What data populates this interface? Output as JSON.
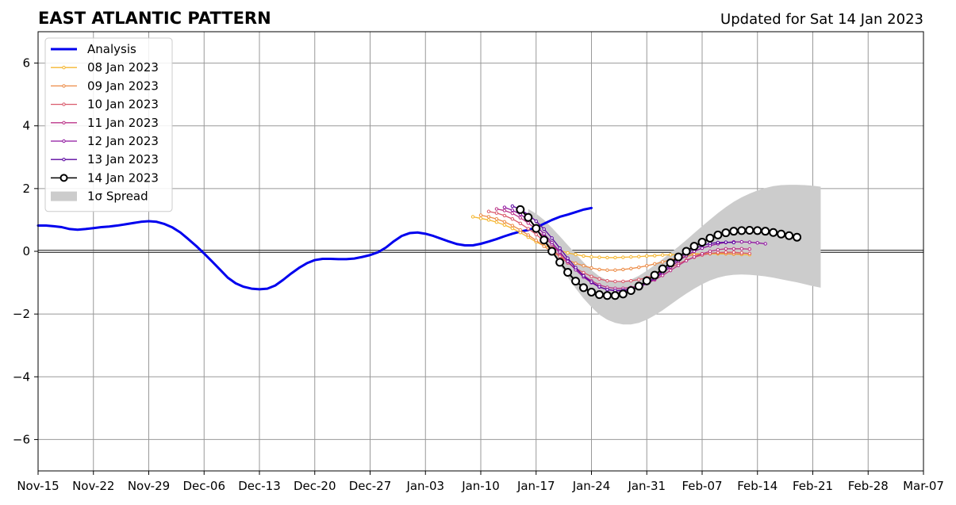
{
  "header": {
    "title": "EAST ATLANTIC PATTERN",
    "updated": "Updated for Sat 14 Jan 2023"
  },
  "chart_data": {
    "type": "line",
    "title": "EAST ATLANTIC PATTERN",
    "subtitle": "Updated for Sat 14 Jan 2023",
    "xlabel": "",
    "ylabel": "",
    "x_axis": {
      "type": "date",
      "range": [
        "2022-11-15",
        "2023-03-07"
      ],
      "ticks": [
        {
          "date": "2022-11-15",
          "label": "Nov-15"
        },
        {
          "date": "2022-11-22",
          "label": "Nov-22"
        },
        {
          "date": "2022-11-29",
          "label": "Nov-29"
        },
        {
          "date": "2022-12-06",
          "label": "Dec-06"
        },
        {
          "date": "2022-12-13",
          "label": "Dec-13"
        },
        {
          "date": "2022-12-20",
          "label": "Dec-20"
        },
        {
          "date": "2022-12-27",
          "label": "Dec-27"
        },
        {
          "date": "2023-01-03",
          "label": "Jan-03"
        },
        {
          "date": "2023-01-10",
          "label": "Jan-10"
        },
        {
          "date": "2023-01-17",
          "label": "Jan-17"
        },
        {
          "date": "2023-01-24",
          "label": "Jan-24"
        },
        {
          "date": "2023-01-31",
          "label": "Jan-31"
        },
        {
          "date": "2023-02-07",
          "label": "Feb-07"
        },
        {
          "date": "2023-02-14",
          "label": "Feb-14"
        },
        {
          "date": "2023-02-21",
          "label": "Feb-21"
        },
        {
          "date": "2023-02-28",
          "label": "Feb-28"
        },
        {
          "date": "2023-03-07",
          "label": "Mar-07"
        }
      ]
    },
    "y_axis": {
      "range": [
        -7,
        7
      ],
      "ticks": [
        {
          "value": -6,
          "label": "−6"
        },
        {
          "value": -4,
          "label": "−4"
        },
        {
          "value": -2,
          "label": "−2"
        },
        {
          "value": 0,
          "label": "0"
        },
        {
          "value": 2,
          "label": "2"
        },
        {
          "value": 4,
          "label": "4"
        },
        {
          "value": 6,
          "label": "6"
        }
      ]
    },
    "grid": true,
    "zero_line": true,
    "legend": {
      "position": "top-left",
      "entries": [
        {
          "label": "Analysis",
          "color": "#0000ee",
          "style": "line-thick"
        },
        {
          "label": "08 Jan 2023",
          "color": "#f5b731",
          "style": "line-dot"
        },
        {
          "label": "09 Jan 2023",
          "color": "#ec8b46",
          "style": "line-dot"
        },
        {
          "label": "10 Jan 2023",
          "color": "#d9586a",
          "style": "line-dot"
        },
        {
          "label": "11 Jan 2023",
          "color": "#bb3589",
          "style": "line-dot"
        },
        {
          "label": "12 Jan 2023",
          "color": "#8e149f",
          "style": "line-dot"
        },
        {
          "label": "13 Jan 2023",
          "color": "#5b06a1",
          "style": "line-dot"
        },
        {
          "label": "14 Jan 2023",
          "color": "#000000",
          "style": "line-circle"
        },
        {
          "label": "1σ Spread",
          "color": "#cccccc",
          "style": "patch"
        }
      ]
    },
    "analysis": {
      "name": "Analysis",
      "color": "#0000ee",
      "start": "2022-11-15",
      "values": [
        0.82,
        0.82,
        0.8,
        0.77,
        0.71,
        0.69,
        0.71,
        0.74,
        0.77,
        0.79,
        0.82,
        0.86,
        0.9,
        0.94,
        0.96,
        0.94,
        0.87,
        0.76,
        0.6,
        0.39,
        0.17,
        -0.07,
        -0.32,
        -0.58,
        -0.84,
        -1.02,
        -1.13,
        -1.19,
        -1.21,
        -1.19,
        -1.09,
        -0.91,
        -0.71,
        -0.53,
        -0.38,
        -0.28,
        -0.24,
        -0.24,
        -0.25,
        -0.25,
        -0.23,
        -0.18,
        -0.12,
        -0.03,
        0.12,
        0.32,
        0.49,
        0.58,
        0.6,
        0.56,
        0.49,
        0.4,
        0.31,
        0.23,
        0.19,
        0.19,
        0.24,
        0.31,
        0.39,
        0.48,
        0.56,
        0.63,
        0.68,
        0.76,
        0.88,
        1.0,
        1.1,
        1.17,
        1.25,
        1.33,
        1.38
      ]
    },
    "forecasts": [
      {
        "name": "08 Jan 2023",
        "color": "#f5b731",
        "start": "2023-01-09",
        "values": [
          1.1,
          1.05,
          1.0,
          0.93,
          0.84,
          0.73,
          0.6,
          0.45,
          0.3,
          0.18,
          0.1,
          0.03,
          -0.05,
          -0.1,
          -0.15,
          -0.18,
          -0.19,
          -0.2,
          -0.2,
          -0.19,
          -0.18,
          -0.17,
          -0.15,
          -0.14,
          -0.12,
          -0.11,
          -0.1,
          -0.09,
          -0.08,
          -0.08,
          -0.08,
          -0.08,
          -0.08,
          -0.09,
          -0.1,
          -0.11
        ]
      },
      {
        "name": "09 Jan 2023",
        "color": "#ec8b46",
        "start": "2023-01-10",
        "values": [
          1.15,
          1.1,
          1.03,
          0.94,
          0.82,
          0.68,
          0.52,
          0.35,
          0.16,
          -0.02,
          -0.16,
          -0.28,
          -0.38,
          -0.46,
          -0.53,
          -0.58,
          -0.6,
          -0.6,
          -0.58,
          -0.55,
          -0.51,
          -0.46,
          -0.4,
          -0.34,
          -0.27,
          -0.21,
          -0.16,
          -0.11,
          -0.08,
          -0.06,
          -0.06,
          -0.07,
          -0.08,
          -0.09
        ]
      },
      {
        "name": "10 Jan 2023",
        "color": "#d9586a",
        "start": "2023-01-11",
        "values": [
          1.27,
          1.22,
          1.14,
          1.03,
          0.89,
          0.72,
          0.54,
          0.33,
          0.09,
          -0.16,
          -0.37,
          -0.54,
          -0.68,
          -0.8,
          -0.88,
          -0.94,
          -0.96,
          -0.96,
          -0.94,
          -0.9,
          -0.84,
          -0.75,
          -0.64,
          -0.52,
          -0.4,
          -0.28,
          -0.19,
          -0.12,
          -0.07,
          -0.04,
          -0.03,
          -0.03,
          -0.05,
          -0.07
        ]
      },
      {
        "name": "11 Jan 2023",
        "color": "#bb3589",
        "start": "2023-01-12",
        "values": [
          1.35,
          1.3,
          1.21,
          1.07,
          0.9,
          0.7,
          0.47,
          0.22,
          -0.06,
          -0.33,
          -0.56,
          -0.77,
          -0.94,
          -1.07,
          -1.15,
          -1.18,
          -1.18,
          -1.15,
          -1.1,
          -1.02,
          -0.91,
          -0.77,
          -0.61,
          -0.45,
          -0.3,
          -0.18,
          -0.08,
          0.0,
          0.05,
          0.08,
          0.08,
          0.08,
          0.07
        ]
      },
      {
        "name": "12 Jan 2023",
        "color": "#8e149f",
        "start": "2023-01-13",
        "values": [
          1.4,
          1.31,
          1.18,
          1.01,
          0.8,
          0.56,
          0.28,
          -0.02,
          -0.32,
          -0.59,
          -0.82,
          -1.0,
          -1.14,
          -1.22,
          -1.26,
          -1.26,
          -1.22,
          -1.14,
          -1.03,
          -0.88,
          -0.69,
          -0.5,
          -0.31,
          -0.14,
          0.0,
          0.1,
          0.18,
          0.24,
          0.28,
          0.3,
          0.3,
          0.29,
          0.27,
          0.24
        ]
      },
      {
        "name": "13 Jan 2023",
        "color": "#5b06a1",
        "start": "2023-01-14",
        "values": [
          1.44,
          1.34,
          1.17,
          0.96,
          0.71,
          0.42,
          0.1,
          -0.22,
          -0.52,
          -0.78,
          -0.98,
          -1.13,
          -1.22,
          -1.25,
          -1.24,
          -1.2,
          -1.12,
          -1.0,
          -0.84,
          -0.64,
          -0.44,
          -0.24,
          -0.06,
          0.08,
          0.18,
          0.25,
          0.28,
          0.29,
          0.28
        ]
      },
      {
        "name": "14 Jan 2023",
        "color": "#000000",
        "start": "2023-01-15",
        "values": [
          1.33,
          1.08,
          0.73,
          0.36,
          0.0,
          -0.35,
          -0.67,
          -0.95,
          -1.16,
          -1.3,
          -1.38,
          -1.41,
          -1.41,
          -1.36,
          -1.25,
          -1.11,
          -0.94,
          -0.76,
          -0.56,
          -0.37,
          -0.18,
          0.0,
          0.16,
          0.29,
          0.42,
          0.52,
          0.59,
          0.64,
          0.66,
          0.67,
          0.66,
          0.64,
          0.6,
          0.55,
          0.5,
          0.45
        ]
      }
    ],
    "spread": {
      "name": "1σ Spread",
      "color": "#cccccc",
      "start": "2023-01-16",
      "upper": [
        1.35,
        1.2,
        1.0,
        0.75,
        0.48,
        0.2,
        -0.08,
        -0.35,
        -0.6,
        -0.8,
        -0.92,
        -0.98,
        -0.97,
        -0.9,
        -0.78,
        -0.62,
        -0.44,
        -0.25,
        -0.05,
        0.15,
        0.36,
        0.58,
        0.8,
        1.01,
        1.22,
        1.41,
        1.58,
        1.72,
        1.84,
        1.94,
        2.02,
        2.08,
        2.11,
        2.12,
        2.12,
        2.11,
        2.09,
        2.06
      ],
      "lower": [
        1.25,
        0.9,
        0.45,
        0.0,
        -0.42,
        -0.82,
        -1.18,
        -1.5,
        -1.78,
        -2.02,
        -2.18,
        -2.28,
        -2.33,
        -2.33,
        -2.28,
        -2.18,
        -2.04,
        -1.88,
        -1.7,
        -1.52,
        -1.35,
        -1.19,
        -1.05,
        -0.93,
        -0.84,
        -0.78,
        -0.75,
        -0.74,
        -0.75,
        -0.77,
        -0.8,
        -0.84,
        -0.89,
        -0.94,
        -0.99,
        -1.05,
        -1.11,
        -1.16
      ]
    }
  }
}
